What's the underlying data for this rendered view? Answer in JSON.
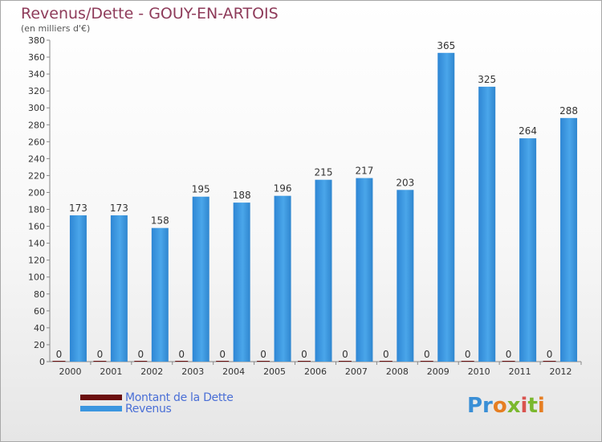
{
  "title": "Revenus/Dette - GOUY-EN-ARTOIS",
  "subtitle": "(en milliers d'€)",
  "logo": "Proxiti",
  "colors": {
    "dette": "#6b0f0f",
    "revenus": "#3b96e0",
    "title": "#8e3b5a",
    "legend_text": "#4a6fd6"
  },
  "chart_data": {
    "type": "bar",
    "categories": [
      "2000",
      "2001",
      "2002",
      "2003",
      "2004",
      "2005",
      "2006",
      "2007",
      "2008",
      "2009",
      "2010",
      "2011",
      "2012"
    ],
    "series": [
      {
        "name": "Montant de la Dette",
        "values": [
          0,
          0,
          0,
          0,
          0,
          0,
          0,
          0,
          0,
          0,
          0,
          0,
          0
        ]
      },
      {
        "name": "Revenus",
        "values": [
          173,
          173,
          158,
          195,
          188,
          196,
          215,
          217,
          203,
          365,
          325,
          264,
          288
        ]
      }
    ],
    "ylim": [
      0,
      380
    ],
    "yticks": [
      0,
      20,
      40,
      60,
      80,
      100,
      120,
      140,
      160,
      180,
      200,
      220,
      240,
      260,
      280,
      300,
      320,
      340,
      360,
      380
    ],
    "grid": false,
    "legend_position": "bottom-left"
  }
}
